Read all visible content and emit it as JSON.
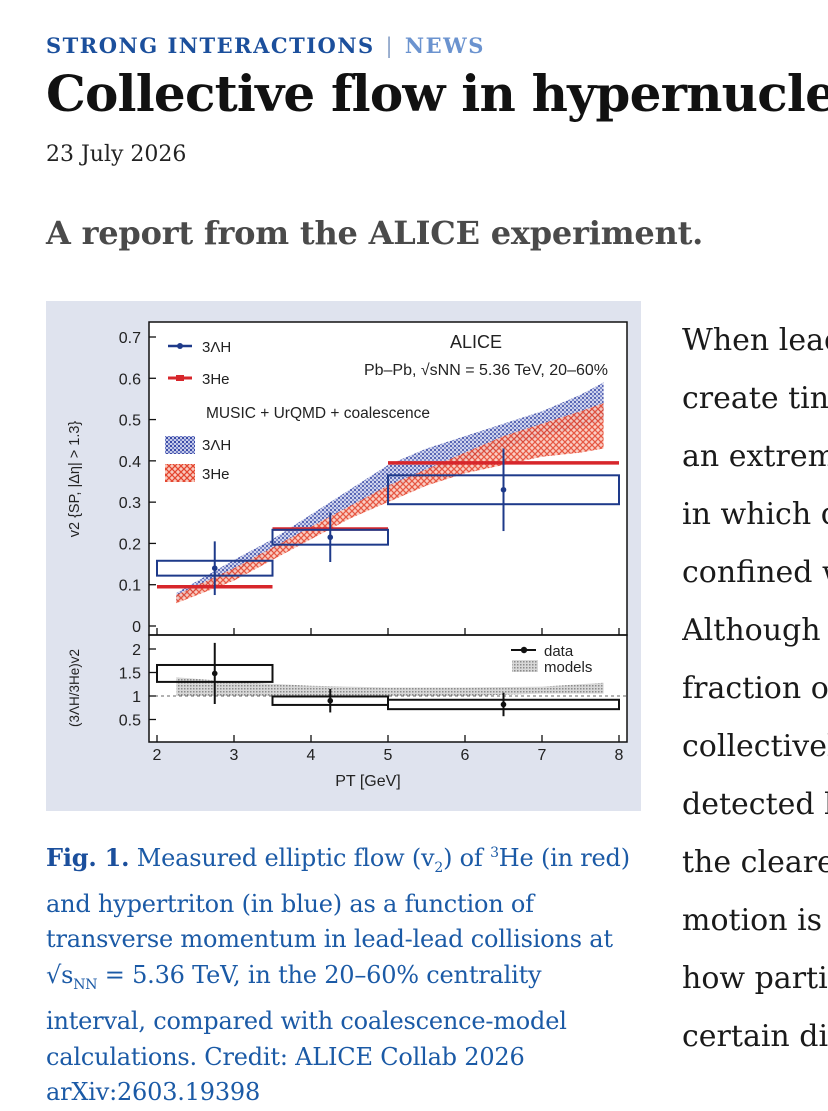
{
  "article": {
    "kicker_section": "STRONG INTERACTIONS",
    "kicker_sep": "|",
    "kicker_type": "NEWS",
    "title": "Collective flow in hypernuclei",
    "date": "23 July 2026",
    "standfirst": "A report from the ALICE experiment.",
    "body_lines": [
      "When lead",
      "create tiny",
      "an extrem",
      "in which q",
      "confined w",
      "Although t",
      "fraction of",
      "collectivel",
      "detected b",
      "the cleares",
      "motion is t",
      "how partic",
      "certain dir"
    ]
  },
  "figure": {
    "caption": {
      "label": "Fig. 1.",
      "t1": "Measured elliptic flow (v",
      "t1sub": "2",
      "t2": ") of ",
      "t2sup": "3",
      "t3": "He (in red) and hypertriton (in blue) as a function of transverse momentum in lead-lead collisions at √s",
      "t3sub": "NN",
      "t4": " = 5.36 TeV, in the 20–60% centrality interval, compared with coalescence-model calculations. Credit: ALICE Collab 2026 arXiv:2603.19398"
    },
    "chart_data": {
      "type": "scatter",
      "title": "ALICE",
      "subtitle": "Pb–Pb, √sNN = 5.36 TeV, 20–60%",
      "xlabel": "PT [GeV]",
      "xlim": [
        2,
        8
      ],
      "xticks": [
        "2",
        "3",
        "4",
        "5",
        "6",
        "7",
        "8"
      ],
      "top_panel": {
        "ylabel": "v2 {SP, |Δη| > 1.3}",
        "ylim": [
          0,
          0.72
        ],
        "yticks": [
          "0",
          "0.1",
          "0.2",
          "0.3",
          "0.4",
          "0.5",
          "0.6",
          "0.7"
        ],
        "model_label": "MUSIC + UrQMD + coalescence",
        "series": [
          {
            "name": "3ΛH",
            "color": "#1e3a8a",
            "points": [
              {
                "x": 2.75,
                "y": 0.14,
                "xlo": 2.0,
                "xhi": 3.5,
                "stat": 0.065,
                "syst": 0.018
              },
              {
                "x": 4.25,
                "y": 0.215,
                "xlo": 3.5,
                "xhi": 5.0,
                "stat": 0.06,
                "syst": 0.018
              },
              {
                "x": 6.5,
                "y": 0.33,
                "xlo": 5.0,
                "xhi": 8.0,
                "stat": 0.1,
                "syst": 0.035
              }
            ]
          },
          {
            "name": "3He",
            "color": "#d7262b",
            "points": [
              {
                "x": 2.75,
                "y": 0.095,
                "xlo": 2.0,
                "xhi": 3.5
              },
              {
                "x": 4.25,
                "y": 0.235,
                "xlo": 3.5,
                "xhi": 5.0
              },
              {
                "x": 6.5,
                "y": 0.395,
                "xlo": 5.0,
                "xhi": 8.0
              }
            ]
          }
        ],
        "models": [
          {
            "name": "3ΛH",
            "color": "#2b3f9e",
            "x": [
              2.25,
              3.0,
              3.5,
              4.0,
              4.5,
              5.0,
              5.5,
              6.0,
              6.5,
              7.0,
              7.5,
              7.8
            ],
            "lo": [
              0.06,
              0.13,
              0.18,
              0.24,
              0.29,
              0.33,
              0.37,
              0.4,
              0.43,
              0.46,
              0.48,
              0.5
            ],
            "hi": [
              0.08,
              0.16,
              0.21,
              0.27,
              0.33,
              0.39,
              0.43,
              0.46,
              0.49,
              0.52,
              0.56,
              0.59
            ]
          },
          {
            "name": "3He",
            "color": "#e8573f",
            "x": [
              2.25,
              3.0,
              3.5,
              4.0,
              4.5,
              5.0,
              5.5,
              6.0,
              6.5,
              7.0,
              7.5,
              7.8
            ],
            "lo": [
              0.055,
              0.11,
              0.16,
              0.21,
              0.26,
              0.3,
              0.34,
              0.37,
              0.39,
              0.41,
              0.42,
              0.43
            ],
            "hi": [
              0.075,
              0.14,
              0.19,
              0.24,
              0.29,
              0.34,
              0.38,
              0.42,
              0.46,
              0.49,
              0.52,
              0.54
            ]
          }
        ]
      },
      "bottom_panel": {
        "ylabel": "(3ΛH/3He)v2",
        "ylim": [
          0.3,
          2.3
        ],
        "yticks": [
          "0.5",
          "1",
          "1.5",
          "2"
        ],
        "reference_line": 1,
        "legend": [
          "data",
          "models"
        ],
        "data": [
          {
            "x": 2.75,
            "y": 1.48,
            "xlo": 2.0,
            "xhi": 3.5,
            "stat": 0.65,
            "syst": 0.18
          },
          {
            "x": 4.25,
            "y": 0.9,
            "xlo": 3.5,
            "xhi": 5.0,
            "stat": 0.25,
            "syst": 0.09
          },
          {
            "x": 6.5,
            "y": 0.82,
            "xlo": 5.0,
            "xhi": 8.0,
            "stat": 0.25,
            "syst": 0.1
          }
        ],
        "models": {
          "x": [
            2.25,
            3.0,
            4.0,
            5.0,
            6.0,
            7.0,
            7.8
          ],
          "lo": [
            1.0,
            1.0,
            1.0,
            1.0,
            1.0,
            1.05,
            1.05
          ],
          "hi": [
            1.4,
            1.3,
            1.22,
            1.18,
            1.18,
            1.2,
            1.28
          ]
        }
      }
    }
  }
}
